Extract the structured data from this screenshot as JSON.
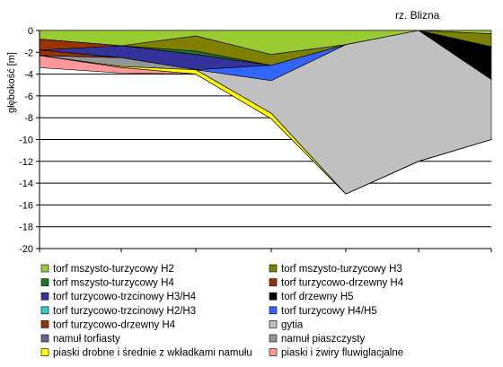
{
  "chart_data": {
    "type": "area",
    "ylabel": "głębokość [m]",
    "xlabel": "",
    "title": "",
    "ylim": [
      -20,
      0
    ],
    "y_ticks": [
      0,
      -2,
      -4,
      -6,
      -8,
      -10,
      -12,
      -14,
      -16,
      -18,
      -20
    ],
    "y_tick_labels": [
      "0",
      "-2",
      "-4",
      "-6",
      "-8",
      "-10",
      "-12",
      "-14",
      "-16",
      "-18",
      "-20"
    ],
    "grid": "horizontal",
    "legend_position": "bottom",
    "x": [
      0,
      1,
      2,
      3,
      4,
      5,
      6
    ],
    "annotations": [
      {
        "text": "rz. Blizna",
        "x": 5
      }
    ],
    "layers": [
      {
        "name": "torf mszysto-turzycowy H2",
        "color": "#99cc33",
        "top": [
          0,
          0,
          0,
          0,
          0,
          0,
          0
        ],
        "bottom": [
          -0.8,
          -1.4,
          -0.5,
          -2.2,
          -1.3,
          0,
          -0.3
        ]
      },
      {
        "name": "torf mszysto-turzycowy H3",
        "color": "#808000",
        "top": [
          -0.8,
          -1.4,
          -0.5,
          -2.2,
          -1.3,
          0,
          -0.3
        ],
        "bottom": [
          -0.8,
          -1.4,
          -1.9,
          -3.2,
          -1.3,
          0,
          -1.5
        ]
      },
      {
        "name": "torf mszysto-turzycowy H4",
        "color": "#1f7a1f",
        "top": [
          -0.8,
          -1.4,
          -1.9,
          -3.2,
          -1.3,
          0,
          -1.5
        ],
        "bottom": [
          -0.8,
          -1.4,
          -2.2,
          -3.2,
          -1.3,
          0,
          -1.5
        ]
      },
      {
        "name": "torf turzycowo-drzewny H4",
        "color": "#993300",
        "top": [
          -0.8,
          -1.4,
          -2.2,
          -3.2,
          -1.3,
          0,
          -1.5
        ],
        "bottom": [
          -1.8,
          -1.4,
          -2.2,
          -3.2,
          -1.3,
          0,
          -1.5
        ]
      },
      {
        "name": "torf turzycowo-trzcinowy H3/H4",
        "color": "#333399",
        "top": [
          -1.8,
          -1.4,
          -2.2,
          -3.2,
          -1.3,
          0,
          -1.5
        ],
        "bottom": [
          -1.8,
          -2.5,
          -3.6,
          -3.2,
          -1.3,
          0,
          -1.5
        ]
      },
      {
        "name": "torf drzewny H5",
        "color": "#000000",
        "top": [
          -1.8,
          -2.5,
          -3.6,
          -3.2,
          -1.3,
          0,
          -1.5
        ],
        "bottom": [
          -1.8,
          -2.5,
          -3.6,
          -3.2,
          -1.3,
          0,
          -4.5
        ]
      },
      {
        "name": "torf turzycowo-trzcinowy H2/H3",
        "color": "#33cccc",
        "top": [
          -1.8,
          -2.5,
          -3.6,
          -3.2,
          -1.3,
          0,
          -4.5
        ],
        "bottom": [
          -1.8,
          -2.5,
          -3.6,
          -3.2,
          -1.3,
          0,
          -4.5
        ]
      },
      {
        "name": "torf turzycowy H4/H5",
        "color": "#3366ff",
        "top": [
          -1.8,
          -2.5,
          -3.6,
          -3.2,
          -1.3,
          0,
          -4.5
        ],
        "bottom": [
          -1.8,
          -2.5,
          -3.6,
          -4.6,
          -1.3,
          0,
          -4.5
        ]
      },
      {
        "name": "torf turzycowo-drzewny H4",
        "color": "#993300",
        "top": [
          -1.8,
          -2.5,
          -3.6,
          -4.6,
          -1.3,
          0,
          -4.5
        ],
        "bottom": [
          -2.3,
          -2.5,
          -3.6,
          -4.6,
          -1.3,
          0,
          -4.5
        ]
      },
      {
        "name": "gytia",
        "color": "#c0c0c0",
        "top": [
          -2.3,
          -2.5,
          -3.6,
          -4.6,
          -1.3,
          0,
          -4.5
        ],
        "bottom": [
          -2.3,
          -2.5,
          -3.6,
          -7.6,
          -15,
          -12,
          -10
        ]
      },
      {
        "name": "namuł torfiasty",
        "color": "#666699",
        "top": [
          -2.3,
          -2.5,
          -3.6,
          -7.6,
          -15,
          -12,
          -10
        ],
        "bottom": [
          -2.3,
          -2.5,
          -3.6,
          -7.6,
          -15,
          -12,
          -10
        ]
      },
      {
        "name": "namuł piaszczysty",
        "color": "#969696",
        "top": [
          -2.3,
          -2.5,
          -3.6,
          -7.6,
          -15,
          -12,
          -10
        ],
        "bottom": [
          -2.3,
          -3.3,
          -3.6,
          -7.6,
          -15,
          -12,
          -10
        ]
      },
      {
        "name": "piaski drobne i średnie z wkładkami namułu",
        "color": "#ffff00",
        "top": [
          -2.3,
          -3.3,
          -3.6,
          -7.6,
          -15,
          -12,
          -10
        ],
        "bottom": [
          -2.3,
          -3.4,
          -4.0,
          -8.1,
          -15,
          -12,
          -10
        ]
      },
      {
        "name": "piaski i żwiry fluwiglacjalne",
        "color": "#ff9999",
        "top": [
          -2.3,
          -3.4,
          -4.0,
          -8.1,
          -15,
          -12,
          -10
        ],
        "bottom": [
          -3.4,
          -3.9,
          -4.0,
          -8.1,
          -15,
          -12,
          -10
        ]
      }
    ]
  }
}
